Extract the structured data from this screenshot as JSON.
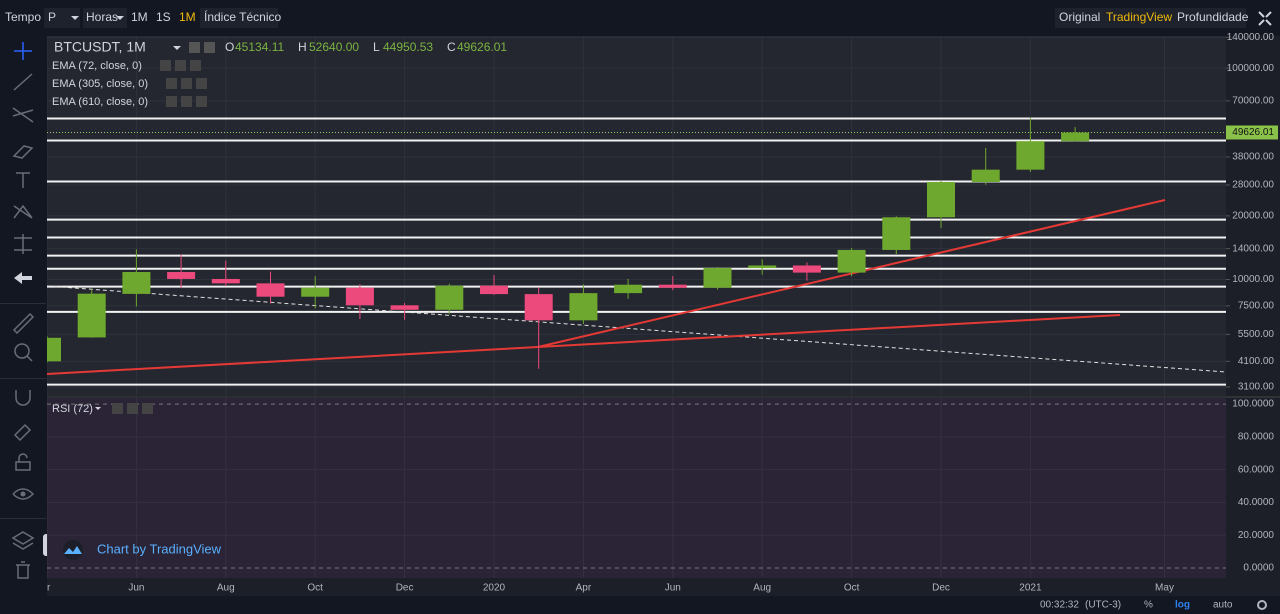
{
  "toolbar": {
    "tempo": "Tempo",
    "period": "P",
    "hours": "Horas",
    "m1": "1M",
    "s1": "1S",
    "mon1": "1M",
    "indicators": "Índice Técnico",
    "original": "Original",
    "tradingview": "TradingView",
    "depth": "Profundidade"
  },
  "chart_data": {
    "type": "candlestick",
    "log_scale": true,
    "grid": true,
    "categories": [
      "r",
      null,
      "Jun",
      null,
      "Aug",
      null,
      "Oct",
      null,
      "Dec",
      null,
      "2020",
      null,
      "Apr",
      null,
      "Jun",
      null,
      "Aug",
      null,
      "Oct",
      null,
      "Dec",
      null,
      "2021",
      null,
      null,
      "May"
    ],
    "series": [
      {
        "name": "BTCUSDT, 1M",
        "up_color": "#6fa82e",
        "down_color": "#ec4a7c",
        "open": [
          4100,
          5320,
          8550,
          10850,
          10060,
          9590,
          8290,
          9150,
          7550,
          7190,
          9350,
          8530,
          6410,
          8620,
          9450,
          9140,
          11330,
          11650,
          10780,
          13800,
          19700,
          28920,
          33090,
          45134.11,
          null,
          null
        ],
        "high": [
          5400,
          9000,
          13900,
          13100,
          12300,
          10900,
          10370,
          9500,
          7750,
          9550,
          10500,
          9190,
          9480,
          10070,
          10380,
          11440,
          12470,
          12050,
          14100,
          19900,
          29300,
          41950,
          58350,
          52640,
          null,
          null
        ],
        "low": [
          4050,
          5300,
          7450,
          9100,
          9300,
          7700,
          7300,
          6500,
          6450,
          6850,
          8450,
          3780,
          6150,
          8100,
          8900,
          8950,
          10550,
          9880,
          10370,
          13200,
          17550,
          28130,
          32300,
          44950.53,
          null,
          null
        ],
        "close": [
          5300,
          8570,
          10850,
          10060,
          9590,
          8290,
          9150,
          7550,
          7190,
          9350,
          8530,
          6410,
          8620,
          9450,
          9140,
          11330,
          11650,
          10780,
          13800,
          19700,
          28920,
          33090,
          45134.11,
          49626.01,
          null,
          null
        ]
      }
    ],
    "value_labels": {
      "open": "45134.11",
      "high": "52640.00",
      "low": "44950.53",
      "close": "49626.01"
    },
    "ohlc_letters": [
      "O",
      "H",
      "L",
      "C"
    ],
    "levels": [
      57800,
      45500,
      29100,
      19200,
      15800,
      12970,
      11250,
      9250,
      7030,
      3180
    ],
    "ylim": [
      2810,
      142000
    ],
    "yticks": [
      {
        "value": 140000,
        "label": "140000.00"
      },
      {
        "value": 100000,
        "label": "100000.00"
      },
      {
        "value": 70000,
        "label": "70000.00"
      },
      {
        "value": 38000,
        "label": "38000.00"
      },
      {
        "value": 28000,
        "label": "28000.00"
      },
      {
        "value": 20000,
        "label": "20000.00"
      },
      {
        "value": 14000,
        "label": "14000.00"
      },
      {
        "value": 10000,
        "label": "10000.00"
      },
      {
        "value": 7500,
        "label": "7500.00"
      },
      {
        "value": 5500,
        "label": "5500.00"
      },
      {
        "value": 4100,
        "label": "4100.00"
      },
      {
        "value": 3100,
        "label": "3100.00"
      }
    ]
  },
  "studies": [
    "EMA (72, close, 0)",
    "EMA (305, close, 0)",
    "EMA (610, close, 0)"
  ],
  "rsi": {
    "title": "RSI (72)",
    "ylim": [
      -6.1,
      103.7
    ],
    "yticks": [
      {
        "value": 0,
        "label": "0.0000"
      },
      {
        "value": 20,
        "label": "20.0000"
      },
      {
        "value": 40,
        "label": "40.0000"
      },
      {
        "value": 60,
        "label": "60.0000"
      },
      {
        "value": 80,
        "label": "80.0000"
      },
      {
        "value": 100,
        "label": "100.0000"
      }
    ]
  },
  "watermark": "Chart by TradingView",
  "status": {
    "time": "00:32:32",
    "tz": "(UTC-3)",
    "percent": "%",
    "log": "log",
    "auto": "auto"
  }
}
